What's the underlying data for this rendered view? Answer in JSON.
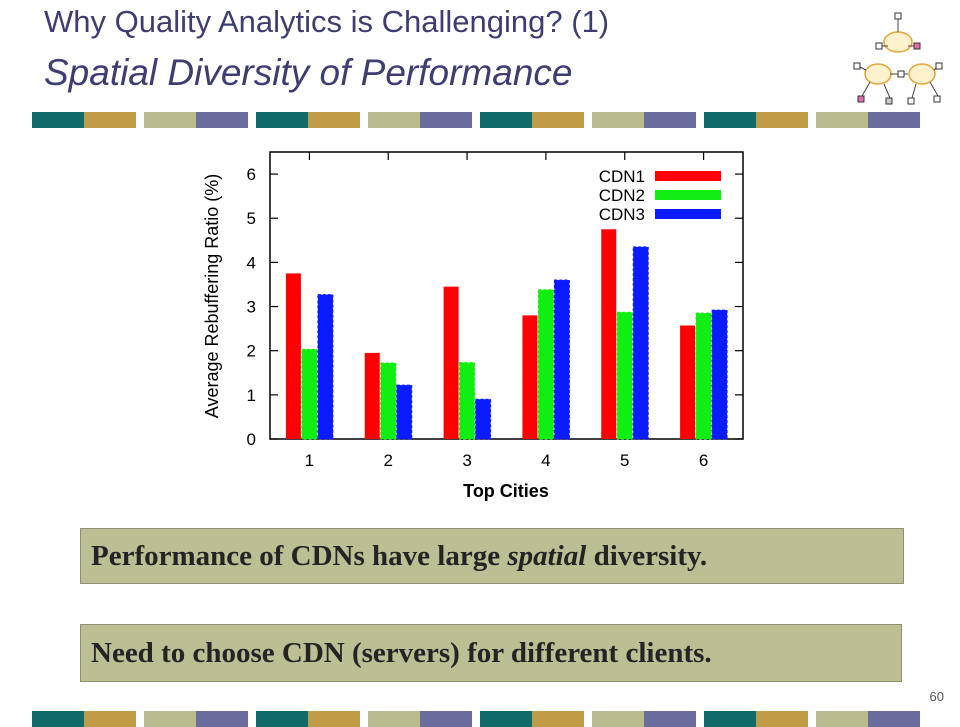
{
  "slide": {
    "title_line1": "Why Quality Analytics is Challenging? (1)",
    "title_line2": "Spatial Diversity of Performance",
    "callout1": {
      "before": "Performance of CDNs have large ",
      "emph": "spatial",
      "after": " diversity."
    },
    "callout2": "Need to choose CDN (servers) for different clients.",
    "page_number": "60"
  },
  "colors": {
    "title": "#3d3d72",
    "stripe": [
      "#0f6a6a",
      "#c19b45",
      "#b9bb8d",
      "#6b6b9e"
    ],
    "callout_bg": "#bcbe94"
  },
  "logo": {
    "icon": "network-cloud-icon"
  },
  "chart_data": {
    "type": "bar",
    "categories": [
      "1",
      "2",
      "3",
      "4",
      "5",
      "6"
    ],
    "series": [
      {
        "name": "CDN1",
        "color": "#ff0000",
        "values": [
          3.75,
          1.95,
          3.45,
          2.8,
          4.75,
          2.57
        ]
      },
      {
        "name": "CDN2",
        "color": "#11ee11",
        "values": [
          2.03,
          1.72,
          1.73,
          3.38,
          2.87,
          2.85
        ]
      },
      {
        "name": "CDN3",
        "color": "#0b1bff",
        "values": [
          3.27,
          1.22,
          0.9,
          3.6,
          4.35,
          2.92
        ]
      }
    ],
    "xlabel": "Top Cities",
    "ylabel": "Average Rebuffering Ratio (%)",
    "ylim": [
      0,
      6.5
    ],
    "yticks": [
      "0",
      "1",
      "2",
      "3",
      "4",
      "5",
      "6"
    ],
    "legend_position": "top-right",
    "grid": false
  }
}
